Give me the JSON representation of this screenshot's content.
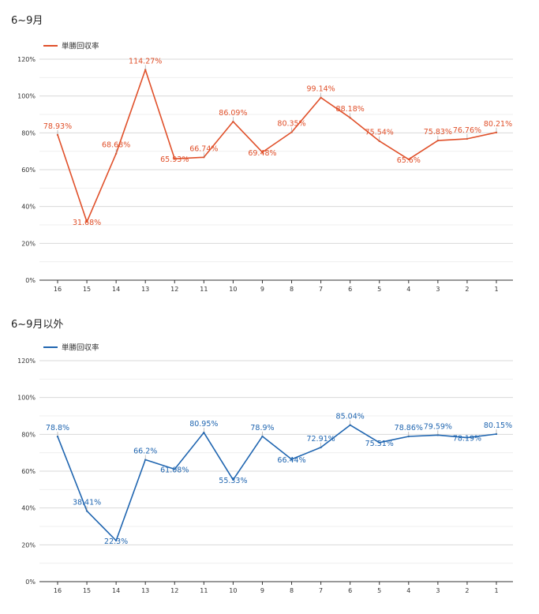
{
  "chart_data": [
    {
      "type": "line",
      "title": "6~9月",
      "categories": [
        "16",
        "15",
        "14",
        "13",
        "12",
        "11",
        "10",
        "9",
        "8",
        "7",
        "6",
        "5",
        "4",
        "3",
        "2",
        "1"
      ],
      "series": [
        {
          "name": "単勝回収率",
          "color": "#e0502a",
          "values": [
            78.93,
            31.68,
            68.68,
            114.27,
            65.93,
            66.74,
            86.09,
            69.48,
            80.35,
            99.14,
            88.18,
            75.54,
            65.6,
            75.83,
            76.76,
            80.21
          ],
          "labels": [
            "78.93%",
            "31.68%",
            "68.68%",
            "114.27%",
            "65.93%",
            "66.74%",
            "86.09%",
            "69.48%",
            "80.35%",
            "99.14%",
            "88.18%",
            "75.54%",
            "65.6%",
            "75.83%",
            "76.76%",
            "80.21%"
          ]
        }
      ],
      "yticks": [
        "0%",
        "20%",
        "40%",
        "60%",
        "80%",
        "100%",
        "120%"
      ],
      "ylim": [
        0,
        120
      ],
      "legend_position": "top-left",
      "grid": true
    },
    {
      "type": "line",
      "title": "6~9月以外",
      "categories": [
        "16",
        "15",
        "14",
        "13",
        "12",
        "11",
        "10",
        "9",
        "8",
        "7",
        "6",
        "5",
        "4",
        "3",
        "2",
        "1"
      ],
      "series": [
        {
          "name": "単勝回収率",
          "color": "#1f65b0",
          "values": [
            78.8,
            38.41,
            22.3,
            66.2,
            61.08,
            80.95,
            55.33,
            78.9,
            66.44,
            72.91,
            85.04,
            75.51,
            78.86,
            79.59,
            78.19,
            80.15
          ],
          "labels": [
            "78.8%",
            "38.41%",
            "22.3%",
            "66.2%",
            "61.08%",
            "80.95%",
            "55.33%",
            "78.9%",
            "66.44%",
            "72.91%",
            "85.04%",
            "75.51%",
            "78.86%",
            "79.59%",
            "78.19%",
            "80.15%"
          ]
        }
      ],
      "yticks": [
        "0%",
        "20%",
        "40%",
        "60%",
        "80%",
        "100%",
        "120%"
      ],
      "ylim": [
        0,
        120
      ],
      "legend_position": "top-left",
      "grid": true
    }
  ]
}
